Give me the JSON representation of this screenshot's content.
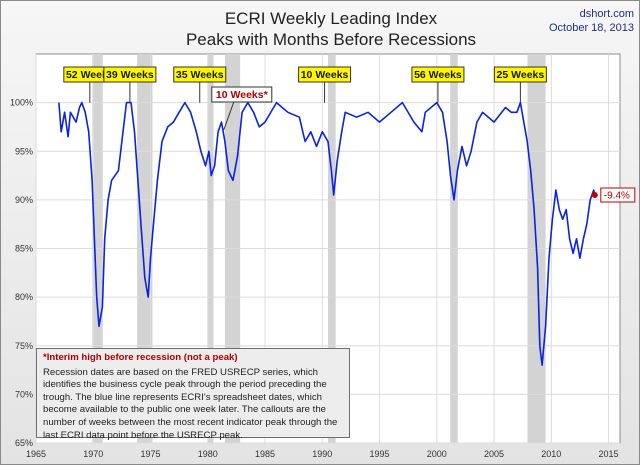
{
  "chart_data": {
    "type": "line",
    "title": "ECRI Weekly Leading Index",
    "subtitle": "Peaks with Months Before Recessions",
    "source": "dshort.com",
    "date": "October 18, 2013",
    "xlim": [
      1965,
      2016
    ],
    "ylim": [
      65,
      105
    ],
    "x_ticks": [
      "1965",
      "1970",
      "1975",
      "1980",
      "1985",
      "1990",
      "1995",
      "2000",
      "2005",
      "2010",
      "2015"
    ],
    "y_ticks": [
      "65%",
      "70%",
      "75%",
      "80%",
      "85%",
      "90%",
      "95%",
      "100%"
    ],
    "grid": true,
    "series_color": "#0a22e6",
    "recession_color": "#d3d3d3",
    "recessions": [
      [
        1969.92,
        1970.83
      ],
      [
        1973.83,
        1975.17
      ],
      [
        1980.0,
        1980.5
      ],
      [
        1981.5,
        1982.83
      ],
      [
        1990.5,
        1991.17
      ],
      [
        2001.17,
        2001.83
      ],
      [
        2007.92,
        2009.5
      ]
    ],
    "series": [
      {
        "x": [
          1967.0,
          1967.2,
          1967.5,
          1967.8,
          1968.0,
          1968.5,
          1968.8,
          1969.0,
          1969.3,
          1969.6,
          1969.9,
          1970.1,
          1970.3,
          1970.5,
          1970.8,
          1971.0,
          1971.3,
          1971.6,
          1971.9,
          1972.2,
          1972.6,
          1972.9,
          1973.3,
          1973.6,
          1973.9,
          1974.2,
          1974.5,
          1974.8,
          1975.0,
          1975.3,
          1975.6,
          1976.0,
          1976.5,
          1977.0,
          1977.5,
          1978.0,
          1978.5,
          1979.0,
          1979.4,
          1979.8,
          1980.1,
          1980.3,
          1980.6,
          1980.9,
          1981.2,
          1981.5,
          1981.8,
          1982.2,
          1982.6,
          1983.0,
          1983.5,
          1984.0,
          1984.5,
          1985.0,
          1986.0,
          1987.0,
          1988.0,
          1988.5,
          1989.0,
          1989.5,
          1990.0,
          1990.5,
          1990.8,
          1991.0,
          1991.3,
          1991.7,
          1992.0,
          1993.0,
          1994.0,
          1995.0,
          1996.0,
          1997.0,
          1998.0,
          1998.7,
          1999.0,
          2000.0,
          2000.5,
          2000.9,
          2001.2,
          2001.5,
          2001.8,
          2002.2,
          2002.6,
          2003.0,
          2003.5,
          2004.0,
          2005.0,
          2006.0,
          2006.5,
          2007.0,
          2007.3,
          2007.6,
          2007.9,
          2008.2,
          2008.5,
          2008.8,
          2009.0,
          2009.2,
          2009.5,
          2009.8,
          2010.1,
          2010.4,
          2010.7,
          2011.0,
          2011.3,
          2011.6,
          2011.9,
          2012.2,
          2012.5,
          2012.8,
          2013.1,
          2013.4,
          2013.7,
          2013.8
        ],
        "y": [
          100,
          97,
          99,
          96.5,
          99,
          98,
          99.5,
          100,
          99,
          97,
          92,
          86,
          80,
          77,
          79,
          86,
          90,
          92,
          92.5,
          93,
          97,
          100,
          100,
          97,
          92,
          87,
          82,
          80,
          84,
          88,
          92,
          96,
          97.5,
          98,
          99,
          100,
          99,
          97,
          95,
          93.5,
          95,
          92.5,
          93.5,
          97,
          98,
          96,
          93,
          92,
          94.5,
          99,
          100,
          99,
          97.5,
          98,
          100,
          99,
          98.5,
          96,
          97,
          95.5,
          97,
          96,
          93,
          90.5,
          94,
          97,
          99,
          98.5,
          99,
          98,
          99,
          100,
          98,
          97,
          99,
          100,
          99,
          96,
          92.5,
          90,
          93,
          95.5,
          93.5,
          95,
          98,
          99,
          98,
          99.5,
          99,
          99,
          100,
          98,
          96,
          93,
          89,
          83,
          75,
          73,
          77,
          84,
          88,
          91,
          89,
          88,
          89,
          86,
          84.5,
          86,
          84,
          86,
          87.5,
          90,
          91,
          90.5
        ]
      }
    ],
    "callouts": [
      {
        "label": "52 Weeks",
        "x": 1969.7
      },
      {
        "label": "39 Weeks",
        "x": 1973.2
      },
      {
        "label": "35 Weeks",
        "x": 1979.3
      },
      {
        "label": "10 Weeks",
        "x": 1990.2
      },
      {
        "label": "56 Weeks",
        "x": 2000.1
      },
      {
        "label": "25 Weeks",
        "x": 2007.3
      }
    ],
    "interim": {
      "label": "10 Weeks*",
      "x": 1981.4
    },
    "last_point": {
      "x": 2013.8,
      "y": 90.5,
      "label": "-9.4%"
    }
  },
  "note": {
    "title": "*Interim high before recession (not a peak)",
    "body": "Recession dates are based on the FRED USRECP series, which identifies the business cycle peak through the period preceding the trough. The blue line represents ECRI's spreadsheet dates, which become available to the public one week later. The callouts are the number of weeks between the most recent indicator peak through the last ECRI data point before the USRECP peak."
  }
}
